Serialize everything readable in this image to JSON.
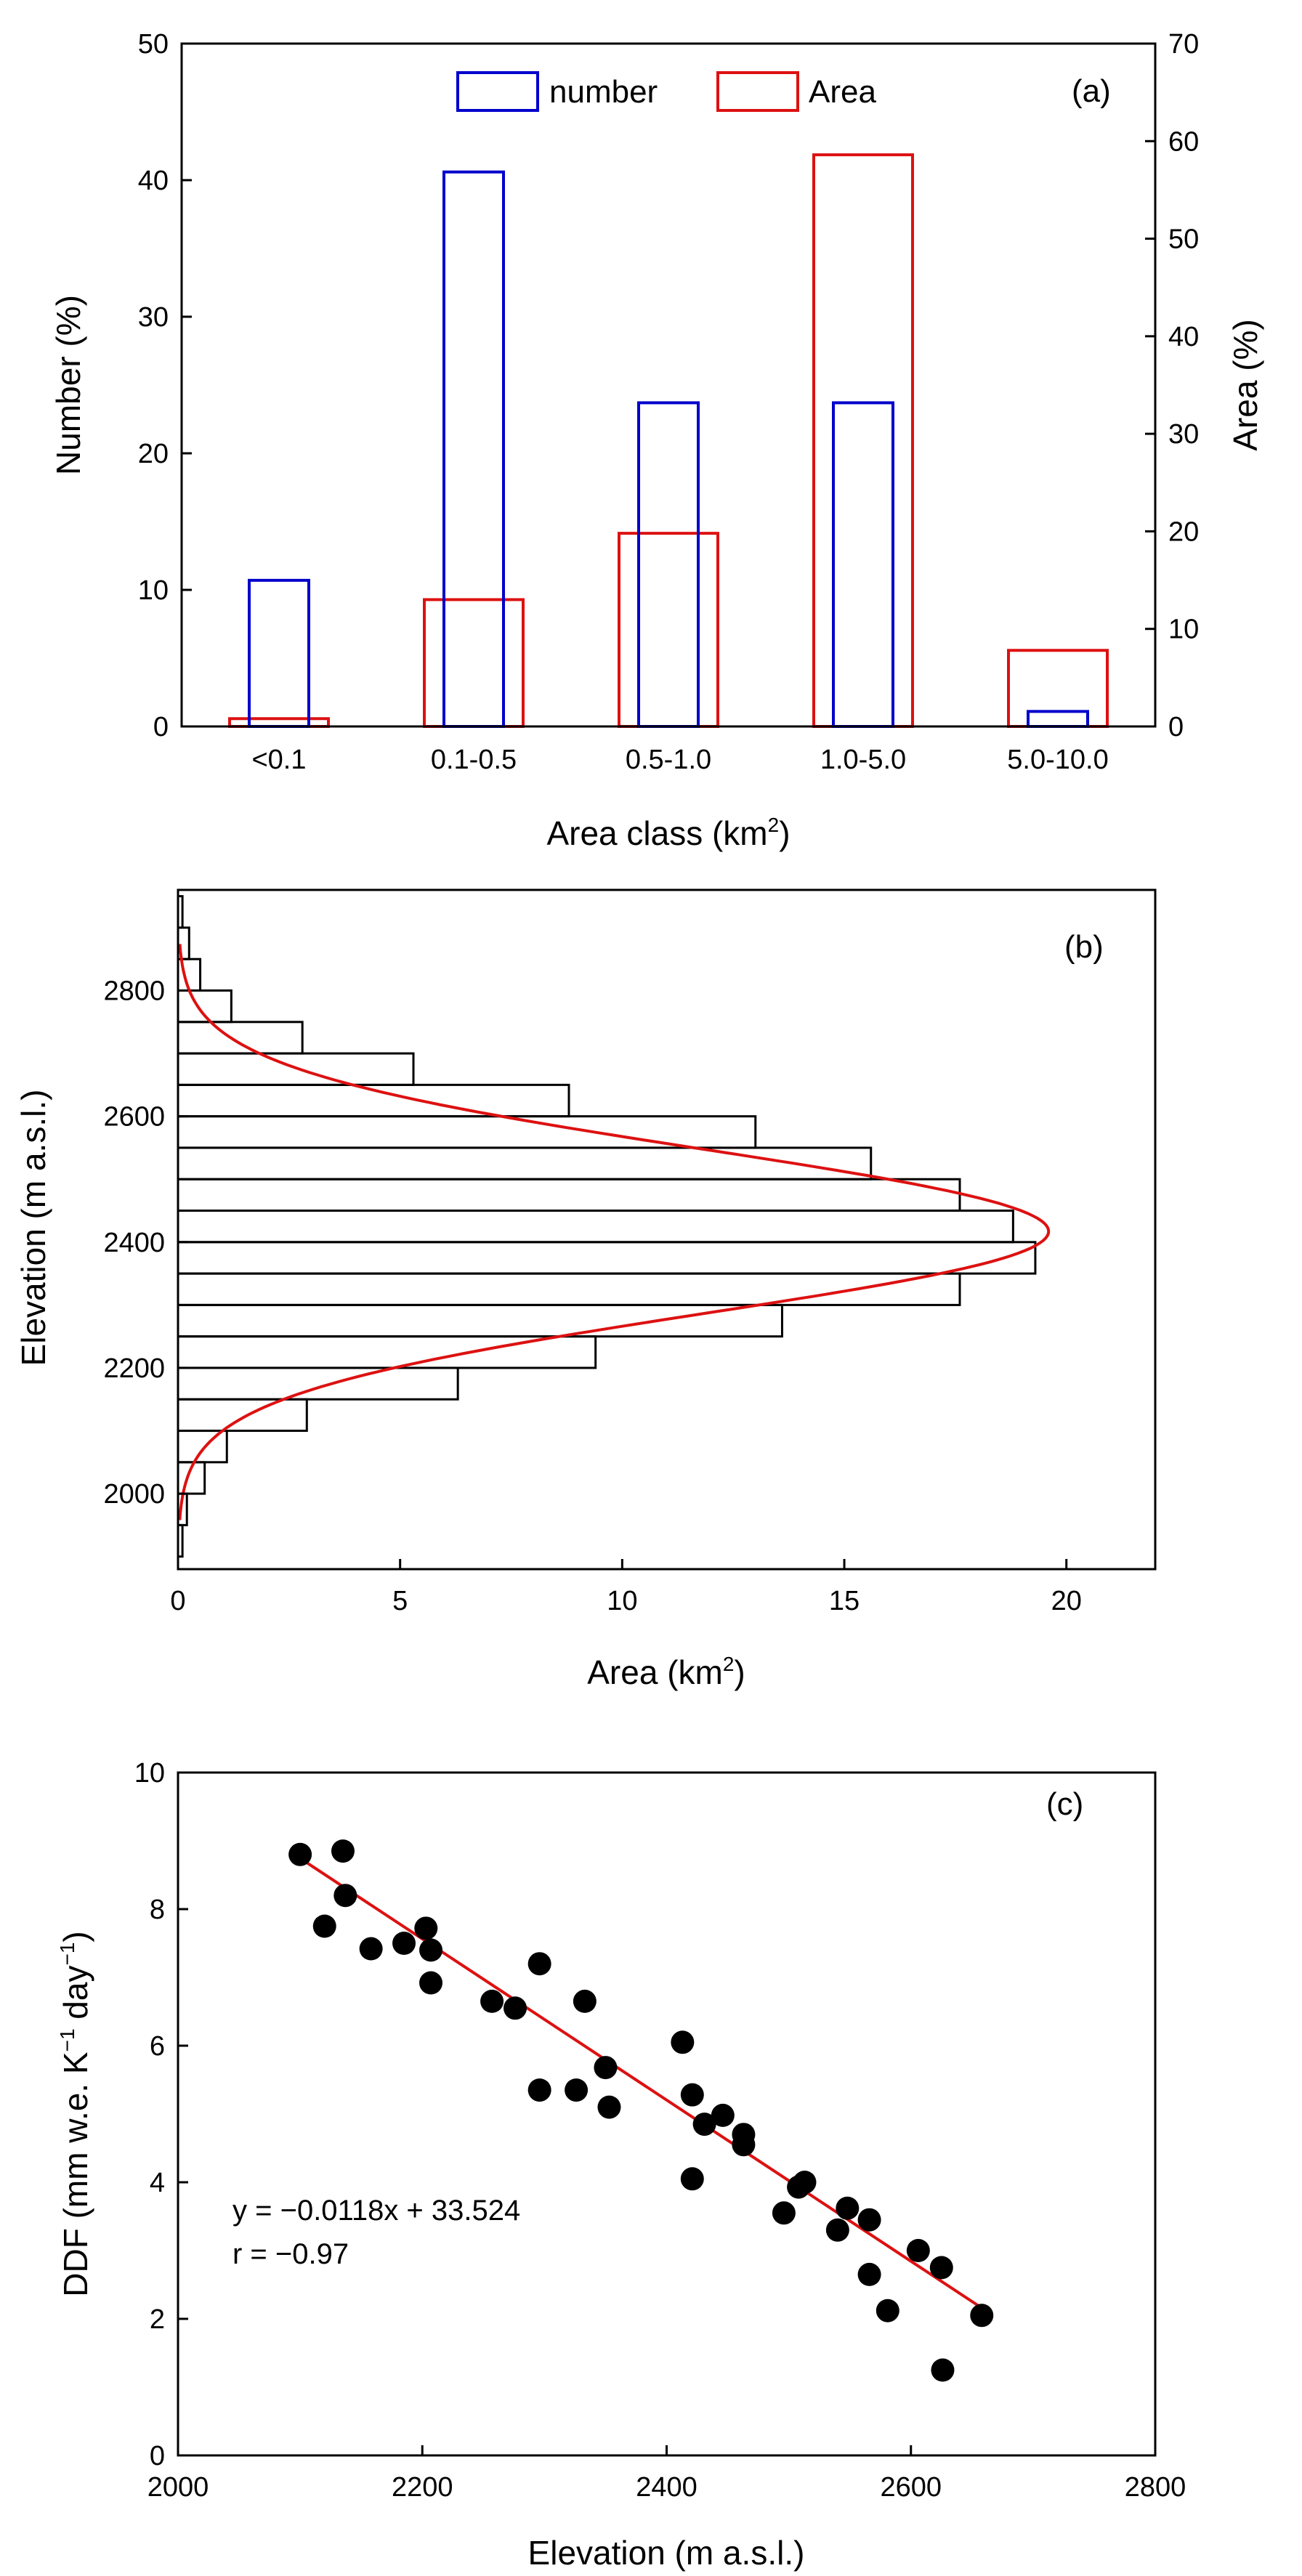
{
  "chart_data": [
    {
      "panel_label": "(a)",
      "type": "bar",
      "xlabel": "Area class (km",
      "xlabel_sup": "2",
      "xlabel_tail": ")",
      "ylabel": "Number (%)",
      "ylabel_right": "Area (%)",
      "categories": [
        "<0.1",
        "0.1-0.5",
        "0.5-1.0",
        "1.0-5.0",
        "5.0-10.0"
      ],
      "ylim": [
        0,
        50
      ],
      "ylim_right": [
        0,
        70
      ],
      "yticks": [
        "0",
        "10",
        "20",
        "30",
        "40",
        "50"
      ],
      "yticks_right": [
        "0",
        "10",
        "20",
        "30",
        "40",
        "50",
        "60",
        "70"
      ],
      "series": [
        {
          "name": "number",
          "axis": "left",
          "color": "#0000cc",
          "values": [
            10.7,
            40.6,
            23.7,
            23.7,
            1.1
          ]
        },
        {
          "name": "Area",
          "axis": "right",
          "color": "#dd1111",
          "values": [
            0.8,
            13.0,
            19.8,
            58.6,
            7.8
          ]
        }
      ],
      "legend": "top-center",
      "grid": false
    },
    {
      "panel_label": "(b)",
      "type": "bar",
      "orientation": "horizontal",
      "xlabel": "Area (km",
      "xlabel_sup": "2",
      "xlabel_tail": ")",
      "ylabel": "Elevation (m a.s.l.)",
      "xlim": [
        0,
        22
      ],
      "ylim": [
        1880,
        2960
      ],
      "xticks": [
        "0",
        "5",
        "10",
        "15",
        "20"
      ],
      "yticks": [
        "2000",
        "2200",
        "2400",
        "2600",
        "2800"
      ],
      "bin_width": 50,
      "bins": [
        {
          "y": 1900,
          "value": 0.1
        },
        {
          "y": 1950,
          "value": 0.2
        },
        {
          "y": 2000,
          "value": 0.6
        },
        {
          "y": 2050,
          "value": 1.1
        },
        {
          "y": 2100,
          "value": 2.9
        },
        {
          "y": 2150,
          "value": 6.3
        },
        {
          "y": 2200,
          "value": 9.4
        },
        {
          "y": 2250,
          "value": 13.6
        },
        {
          "y": 2300,
          "value": 17.6
        },
        {
          "y": 2350,
          "value": 19.3
        },
        {
          "y": 2400,
          "value": 18.8
        },
        {
          "y": 2450,
          "value": 17.6
        },
        {
          "y": 2500,
          "value": 15.6
        },
        {
          "y": 2550,
          "value": 13.0
        },
        {
          "y": 2600,
          "value": 8.8
        },
        {
          "y": 2650,
          "value": 5.3
        },
        {
          "y": 2700,
          "value": 2.8
        },
        {
          "y": 2750,
          "value": 1.2
        },
        {
          "y": 2800,
          "value": 0.5
        },
        {
          "y": 2850,
          "value": 0.25
        },
        {
          "y": 2900,
          "value": 0.1
        }
      ],
      "fit_curve": {
        "type": "gaussian",
        "color": "#dd1111",
        "peak": 19.6,
        "center": 2417,
        "sigma": 130
      },
      "grid": false
    },
    {
      "panel_label": "(c)",
      "type": "scatter",
      "xlabel": "Elevation (m a.s.l.)",
      "ylabel_parts": [
        "DDF (mm w.e. K",
        "−1",
        " day",
        "−1",
        ")"
      ],
      "xlim": [
        2000,
        2800
      ],
      "ylim": [
        0,
        10
      ],
      "xticks": [
        "2000",
        "2200",
        "2400",
        "2600",
        "2800"
      ],
      "yticks": [
        "0",
        "2",
        "4",
        "6",
        "8",
        "10"
      ],
      "points": [
        {
          "x": 2100,
          "y": 8.8
        },
        {
          "x": 2135,
          "y": 8.85
        },
        {
          "x": 2137,
          "y": 8.2
        },
        {
          "x": 2120,
          "y": 7.75
        },
        {
          "x": 2158,
          "y": 7.42
        },
        {
          "x": 2185,
          "y": 7.5
        },
        {
          "x": 2203,
          "y": 7.72
        },
        {
          "x": 2207,
          "y": 7.4
        },
        {
          "x": 2207,
          "y": 6.92
        },
        {
          "x": 2257,
          "y": 6.65
        },
        {
          "x": 2276,
          "y": 6.55
        },
        {
          "x": 2296,
          "y": 7.2
        },
        {
          "x": 2296,
          "y": 5.35
        },
        {
          "x": 2326,
          "y": 5.35
        },
        {
          "x": 2333,
          "y": 6.65
        },
        {
          "x": 2350,
          "y": 5.68
        },
        {
          "x": 2353,
          "y": 5.1
        },
        {
          "x": 2413,
          "y": 6.05
        },
        {
          "x": 2421,
          "y": 5.28
        },
        {
          "x": 2431,
          "y": 4.85
        },
        {
          "x": 2446,
          "y": 4.98
        },
        {
          "x": 2463,
          "y": 4.7
        },
        {
          "x": 2463,
          "y": 4.55
        },
        {
          "x": 2421,
          "y": 4.05
        },
        {
          "x": 2496,
          "y": 3.55
        },
        {
          "x": 2508,
          "y": 3.93
        },
        {
          "x": 2513,
          "y": 4.0
        },
        {
          "x": 2540,
          "y": 3.3
        },
        {
          "x": 2548,
          "y": 3.62
        },
        {
          "x": 2566,
          "y": 3.45
        },
        {
          "x": 2566,
          "y": 2.65
        },
        {
          "x": 2581,
          "y": 2.12
        },
        {
          "x": 2606,
          "y": 3.0
        },
        {
          "x": 2625,
          "y": 2.75
        },
        {
          "x": 2626,
          "y": 1.25
        },
        {
          "x": 2658,
          "y": 2.05
        }
      ],
      "fit_line": {
        "slope": -0.0118,
        "intercept": 33.524,
        "x_range": [
          2100,
          2658
        ],
        "color": "#dd1111"
      },
      "annotations": [
        "y = −0.0118x + 33.524",
        "r = −0.97"
      ],
      "grid": false
    }
  ]
}
